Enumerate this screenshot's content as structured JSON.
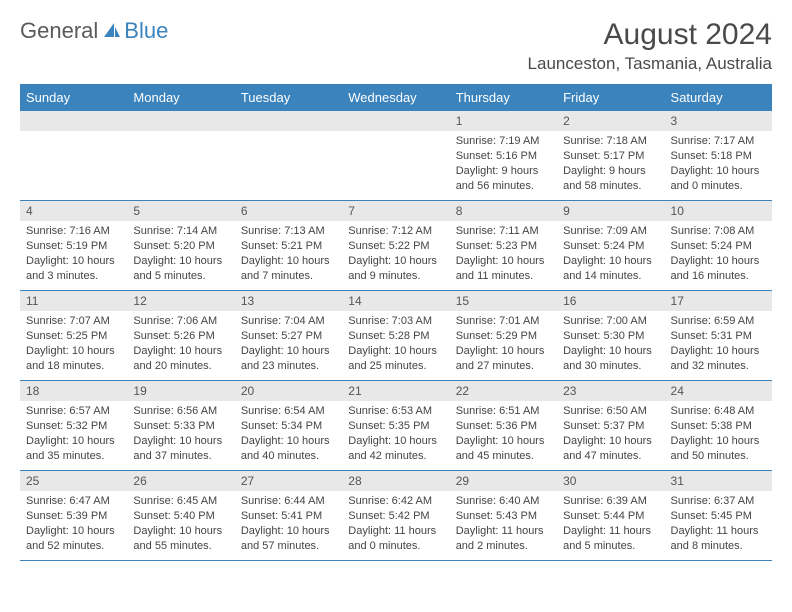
{
  "logo": {
    "part1": "General",
    "part2": "Blue"
  },
  "title": "August 2024",
  "location": "Launceston, Tasmania, Australia",
  "colors": {
    "brand_blue": "#3b83bd",
    "header_gray": "#e8e8e8",
    "text": "#444444",
    "background": "#ffffff"
  },
  "day_headers": [
    "Sunday",
    "Monday",
    "Tuesday",
    "Wednesday",
    "Thursday",
    "Friday",
    "Saturday"
  ],
  "weeks": [
    [
      null,
      null,
      null,
      null,
      {
        "n": "1",
        "sunrise": "7:19 AM",
        "sunset": "5:16 PM",
        "daylight": "9 hours and 56 minutes."
      },
      {
        "n": "2",
        "sunrise": "7:18 AM",
        "sunset": "5:17 PM",
        "daylight": "9 hours and 58 minutes."
      },
      {
        "n": "3",
        "sunrise": "7:17 AM",
        "sunset": "5:18 PM",
        "daylight": "10 hours and 0 minutes."
      }
    ],
    [
      {
        "n": "4",
        "sunrise": "7:16 AM",
        "sunset": "5:19 PM",
        "daylight": "10 hours and 3 minutes."
      },
      {
        "n": "5",
        "sunrise": "7:14 AM",
        "sunset": "5:20 PM",
        "daylight": "10 hours and 5 minutes."
      },
      {
        "n": "6",
        "sunrise": "7:13 AM",
        "sunset": "5:21 PM",
        "daylight": "10 hours and 7 minutes."
      },
      {
        "n": "7",
        "sunrise": "7:12 AM",
        "sunset": "5:22 PM",
        "daylight": "10 hours and 9 minutes."
      },
      {
        "n": "8",
        "sunrise": "7:11 AM",
        "sunset": "5:23 PM",
        "daylight": "10 hours and 11 minutes."
      },
      {
        "n": "9",
        "sunrise": "7:09 AM",
        "sunset": "5:24 PM",
        "daylight": "10 hours and 14 minutes."
      },
      {
        "n": "10",
        "sunrise": "7:08 AM",
        "sunset": "5:24 PM",
        "daylight": "10 hours and 16 minutes."
      }
    ],
    [
      {
        "n": "11",
        "sunrise": "7:07 AM",
        "sunset": "5:25 PM",
        "daylight": "10 hours and 18 minutes."
      },
      {
        "n": "12",
        "sunrise": "7:06 AM",
        "sunset": "5:26 PM",
        "daylight": "10 hours and 20 minutes."
      },
      {
        "n": "13",
        "sunrise": "7:04 AM",
        "sunset": "5:27 PM",
        "daylight": "10 hours and 23 minutes."
      },
      {
        "n": "14",
        "sunrise": "7:03 AM",
        "sunset": "5:28 PM",
        "daylight": "10 hours and 25 minutes."
      },
      {
        "n": "15",
        "sunrise": "7:01 AM",
        "sunset": "5:29 PM",
        "daylight": "10 hours and 27 minutes."
      },
      {
        "n": "16",
        "sunrise": "7:00 AM",
        "sunset": "5:30 PM",
        "daylight": "10 hours and 30 minutes."
      },
      {
        "n": "17",
        "sunrise": "6:59 AM",
        "sunset": "5:31 PM",
        "daylight": "10 hours and 32 minutes."
      }
    ],
    [
      {
        "n": "18",
        "sunrise": "6:57 AM",
        "sunset": "5:32 PM",
        "daylight": "10 hours and 35 minutes."
      },
      {
        "n": "19",
        "sunrise": "6:56 AM",
        "sunset": "5:33 PM",
        "daylight": "10 hours and 37 minutes."
      },
      {
        "n": "20",
        "sunrise": "6:54 AM",
        "sunset": "5:34 PM",
        "daylight": "10 hours and 40 minutes."
      },
      {
        "n": "21",
        "sunrise": "6:53 AM",
        "sunset": "5:35 PM",
        "daylight": "10 hours and 42 minutes."
      },
      {
        "n": "22",
        "sunrise": "6:51 AM",
        "sunset": "5:36 PM",
        "daylight": "10 hours and 45 minutes."
      },
      {
        "n": "23",
        "sunrise": "6:50 AM",
        "sunset": "5:37 PM",
        "daylight": "10 hours and 47 minutes."
      },
      {
        "n": "24",
        "sunrise": "6:48 AM",
        "sunset": "5:38 PM",
        "daylight": "10 hours and 50 minutes."
      }
    ],
    [
      {
        "n": "25",
        "sunrise": "6:47 AM",
        "sunset": "5:39 PM",
        "daylight": "10 hours and 52 minutes."
      },
      {
        "n": "26",
        "sunrise": "6:45 AM",
        "sunset": "5:40 PM",
        "daylight": "10 hours and 55 minutes."
      },
      {
        "n": "27",
        "sunrise": "6:44 AM",
        "sunset": "5:41 PM",
        "daylight": "10 hours and 57 minutes."
      },
      {
        "n": "28",
        "sunrise": "6:42 AM",
        "sunset": "5:42 PM",
        "daylight": "11 hours and 0 minutes."
      },
      {
        "n": "29",
        "sunrise": "6:40 AM",
        "sunset": "5:43 PM",
        "daylight": "11 hours and 2 minutes."
      },
      {
        "n": "30",
        "sunrise": "6:39 AM",
        "sunset": "5:44 PM",
        "daylight": "11 hours and 5 minutes."
      },
      {
        "n": "31",
        "sunrise": "6:37 AM",
        "sunset": "5:45 PM",
        "daylight": "11 hours and 8 minutes."
      }
    ]
  ],
  "labels": {
    "sunrise": "Sunrise: ",
    "sunset": "Sunset: ",
    "daylight": "Daylight: "
  }
}
